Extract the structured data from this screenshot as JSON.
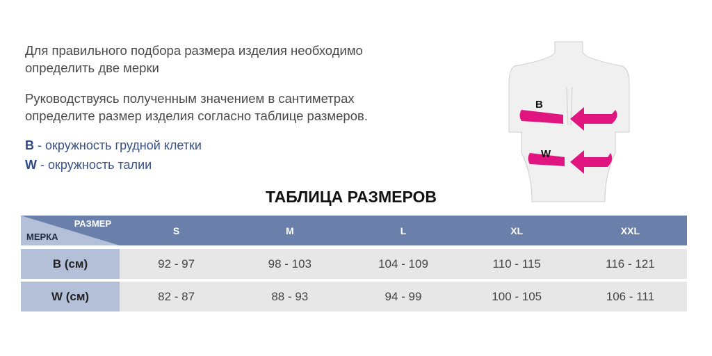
{
  "intro": {
    "line1": "Для правильного подбора размера изделия необходимо",
    "line2": "определить две мерки",
    "line3": "Руководствуясь полученным значением в сантиметрах",
    "line4": "определите размер изделия согласно таблице размеров."
  },
  "legend": [
    {
      "key": "B",
      "text": " - окружность грудной клетки"
    },
    {
      "key": "W",
      "text": " - окружность талии"
    }
  ],
  "figure": {
    "label_b": "B",
    "label_w": "W",
    "arrow_color": "#e0157f"
  },
  "table": {
    "title": "ТАБЛИЦА РАЗМЕРОВ",
    "corner_top": "РАЗМЕР",
    "corner_bottom": "МЕРКА",
    "sizes": [
      "S",
      "M",
      "L",
      "XL",
      "XXL"
    ],
    "rows": [
      {
        "label": "B (см)",
        "values": [
          "92 - 97",
          "98 - 103",
          "104 - 109",
          "110 - 115",
          "116 - 121"
        ]
      },
      {
        "label": "W (см)",
        "values": [
          "82 - 87",
          "88 - 93",
          "94 - 99",
          "100 - 105",
          "106 - 111"
        ]
      }
    ]
  },
  "colors": {
    "header": "#6a80ab",
    "label_cell": "#b4c0d8",
    "data_cell": "#e7e7e7"
  }
}
